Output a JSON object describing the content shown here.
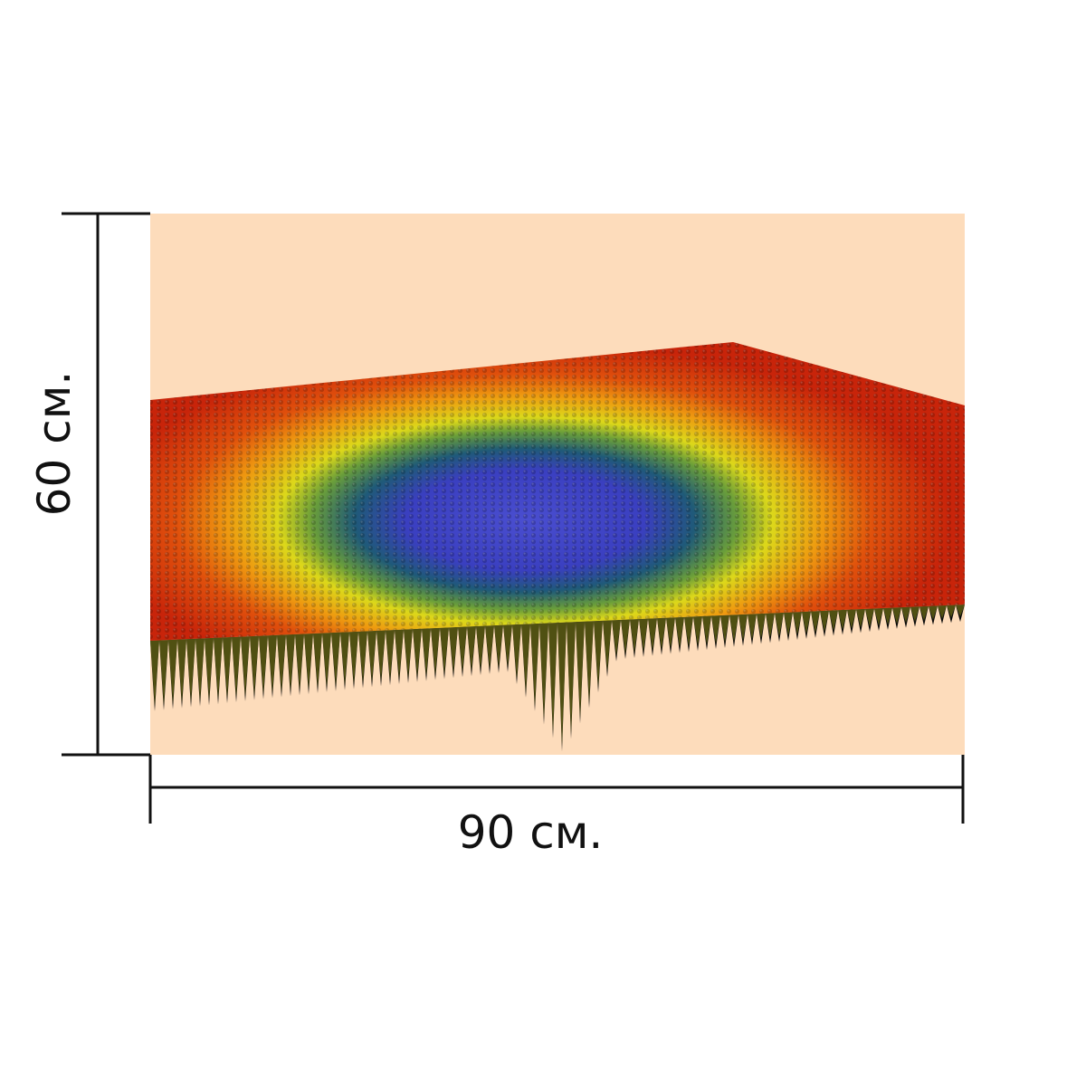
{
  "dimensions": {
    "width_label": "90 см.",
    "height_label": "60 см."
  },
  "colors": {
    "canvas_background": "#fddcbb",
    "dimension_line": "#111111",
    "surface_outer": "#d42a08",
    "surface_mid_orange": "#ee7a10",
    "surface_mid_yellow": "#dcd81a",
    "surface_inner_teal": "#1f5a78",
    "surface_center": "#3a3fc0",
    "spike_shadow": "#0a0a0a"
  }
}
